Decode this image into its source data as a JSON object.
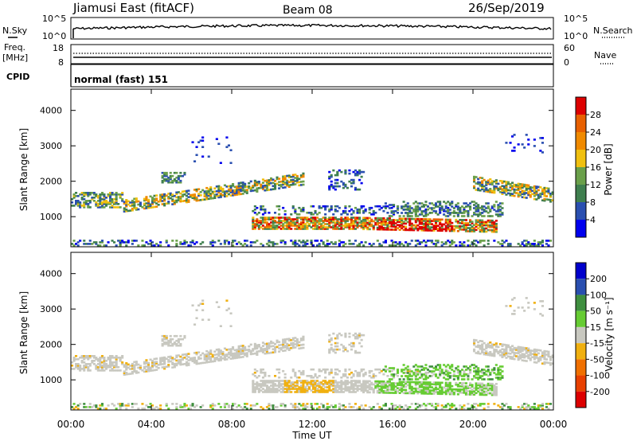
{
  "header": {
    "title": "Jiamusi East (fitACF)",
    "beam": "Beam 08",
    "date": "26/Sep/2019"
  },
  "panels": {
    "nsky": {
      "label": "N.Sky",
      "left_ticks": [
        "10^5",
        "10^0"
      ],
      "right_label": "N.Search",
      "right_ticks": [
        "10^5",
        "10^0"
      ]
    },
    "freq": {
      "label_line1": "Freq.",
      "label_line2": "[MHz]",
      "left_ticks": [
        "18",
        "8"
      ],
      "right_label": "Nave",
      "right_ticks": [
        "60",
        "0"
      ]
    },
    "cpid": {
      "label": "CPID",
      "value": "normal (fast) 151"
    }
  },
  "x_axis": {
    "title": "Time UT",
    "ticks": [
      "00:00",
      "04:00",
      "08:00",
      "12:00",
      "16:00",
      "20:00",
      "00:00"
    ],
    "tick_hours": [
      0,
      4,
      8,
      12,
      16,
      20,
      24
    ]
  },
  "colors": {
    "power": [
      "#0000ee",
      "#2a4fb0",
      "#3f7f4f",
      "#6aa04a",
      "#f0c010",
      "#f08a00",
      "#e86000",
      "#dd0000"
    ],
    "velocity": [
      "#0000cc",
      "#2a4fb0",
      "#3f8f3f",
      "#66cc33",
      "#c8c8c0",
      "#f0b010",
      "#f07000",
      "#e84000",
      "#dd0000"
    ]
  },
  "chart_data": [
    {
      "type": "heatmap",
      "name": "power",
      "ylabel": "Slant Range [km]",
      "yticks": [
        1000,
        2000,
        3000,
        4000
      ],
      "ylim": [
        150,
        4600
      ],
      "xlim": [
        0,
        24
      ],
      "colorbar": {
        "label": "Power [dB]",
        "ticks": [
          4,
          8,
          12,
          16,
          20,
          24,
          28
        ],
        "range": [
          0,
          32
        ]
      }
    },
    {
      "type": "heatmap",
      "name": "velocity",
      "ylabel": "Slant Range [km]",
      "yticks": [
        1000,
        2000,
        3000,
        4000
      ],
      "ylim": [
        150,
        4600
      ],
      "xlim": [
        0,
        24
      ],
      "colorbar": {
        "label": "Velocity [m s⁻¹]",
        "ticks": [
          "200",
          "100",
          "50",
          "15",
          "-15",
          "-50",
          "-100",
          "-200"
        ]
      }
    }
  ]
}
